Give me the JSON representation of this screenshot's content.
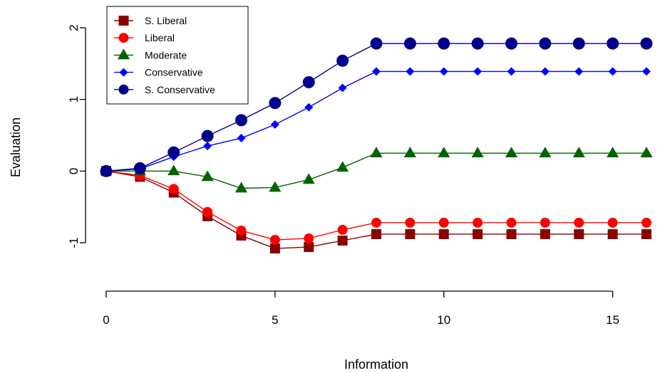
{
  "chart_data": {
    "type": "line",
    "xlabel": "Information",
    "ylabel": "Evaluation",
    "xlim": [
      0,
      16
    ],
    "ylim": [
      -1.15,
      2.0
    ],
    "xticks": [
      0,
      5,
      10,
      15
    ],
    "yticks": [
      -1,
      0,
      1,
      2
    ],
    "x": [
      0,
      1,
      2,
      3,
      4,
      5,
      6,
      7,
      8,
      9,
      10,
      11,
      12,
      13,
      14,
      15,
      16
    ],
    "grid": false,
    "legend_position": "top-left",
    "series": [
      {
        "name": "S. Liberal",
        "color": "#8b0000",
        "marker": "square",
        "values": [
          0.0,
          -0.08,
          -0.3,
          -0.63,
          -0.9,
          -1.08,
          -1.06,
          -0.97,
          -0.88,
          -0.88,
          -0.88,
          -0.88,
          -0.88,
          -0.88,
          -0.88,
          -0.88,
          -0.88
        ]
      },
      {
        "name": "Liberal",
        "color": "#ff0000",
        "marker": "circle",
        "values": [
          0.0,
          -0.06,
          -0.25,
          -0.57,
          -0.83,
          -0.96,
          -0.94,
          -0.82,
          -0.72,
          -0.72,
          -0.72,
          -0.72,
          -0.72,
          -0.72,
          -0.72,
          -0.72,
          -0.72
        ]
      },
      {
        "name": "Moderate",
        "color": "#006400",
        "marker": "triangle",
        "values": [
          0.0,
          0.0,
          0.0,
          -0.08,
          -0.24,
          -0.23,
          -0.12,
          0.05,
          0.25,
          0.25,
          0.25,
          0.25,
          0.25,
          0.25,
          0.25,
          0.25,
          0.25
        ]
      },
      {
        "name": "Conservative",
        "color": "#0000ff",
        "marker": "diamond",
        "values": [
          0.0,
          0.03,
          0.2,
          0.35,
          0.46,
          0.65,
          0.89,
          1.16,
          1.39,
          1.39,
          1.39,
          1.39,
          1.39,
          1.39,
          1.39,
          1.39,
          1.39
        ]
      },
      {
        "name": "S. Conservative",
        "color": "#00008b",
        "marker": "circle",
        "values": [
          0.0,
          0.04,
          0.26,
          0.49,
          0.71,
          0.95,
          1.24,
          1.54,
          1.78,
          1.78,
          1.78,
          1.78,
          1.78,
          1.78,
          1.78,
          1.78,
          1.78
        ]
      }
    ]
  }
}
